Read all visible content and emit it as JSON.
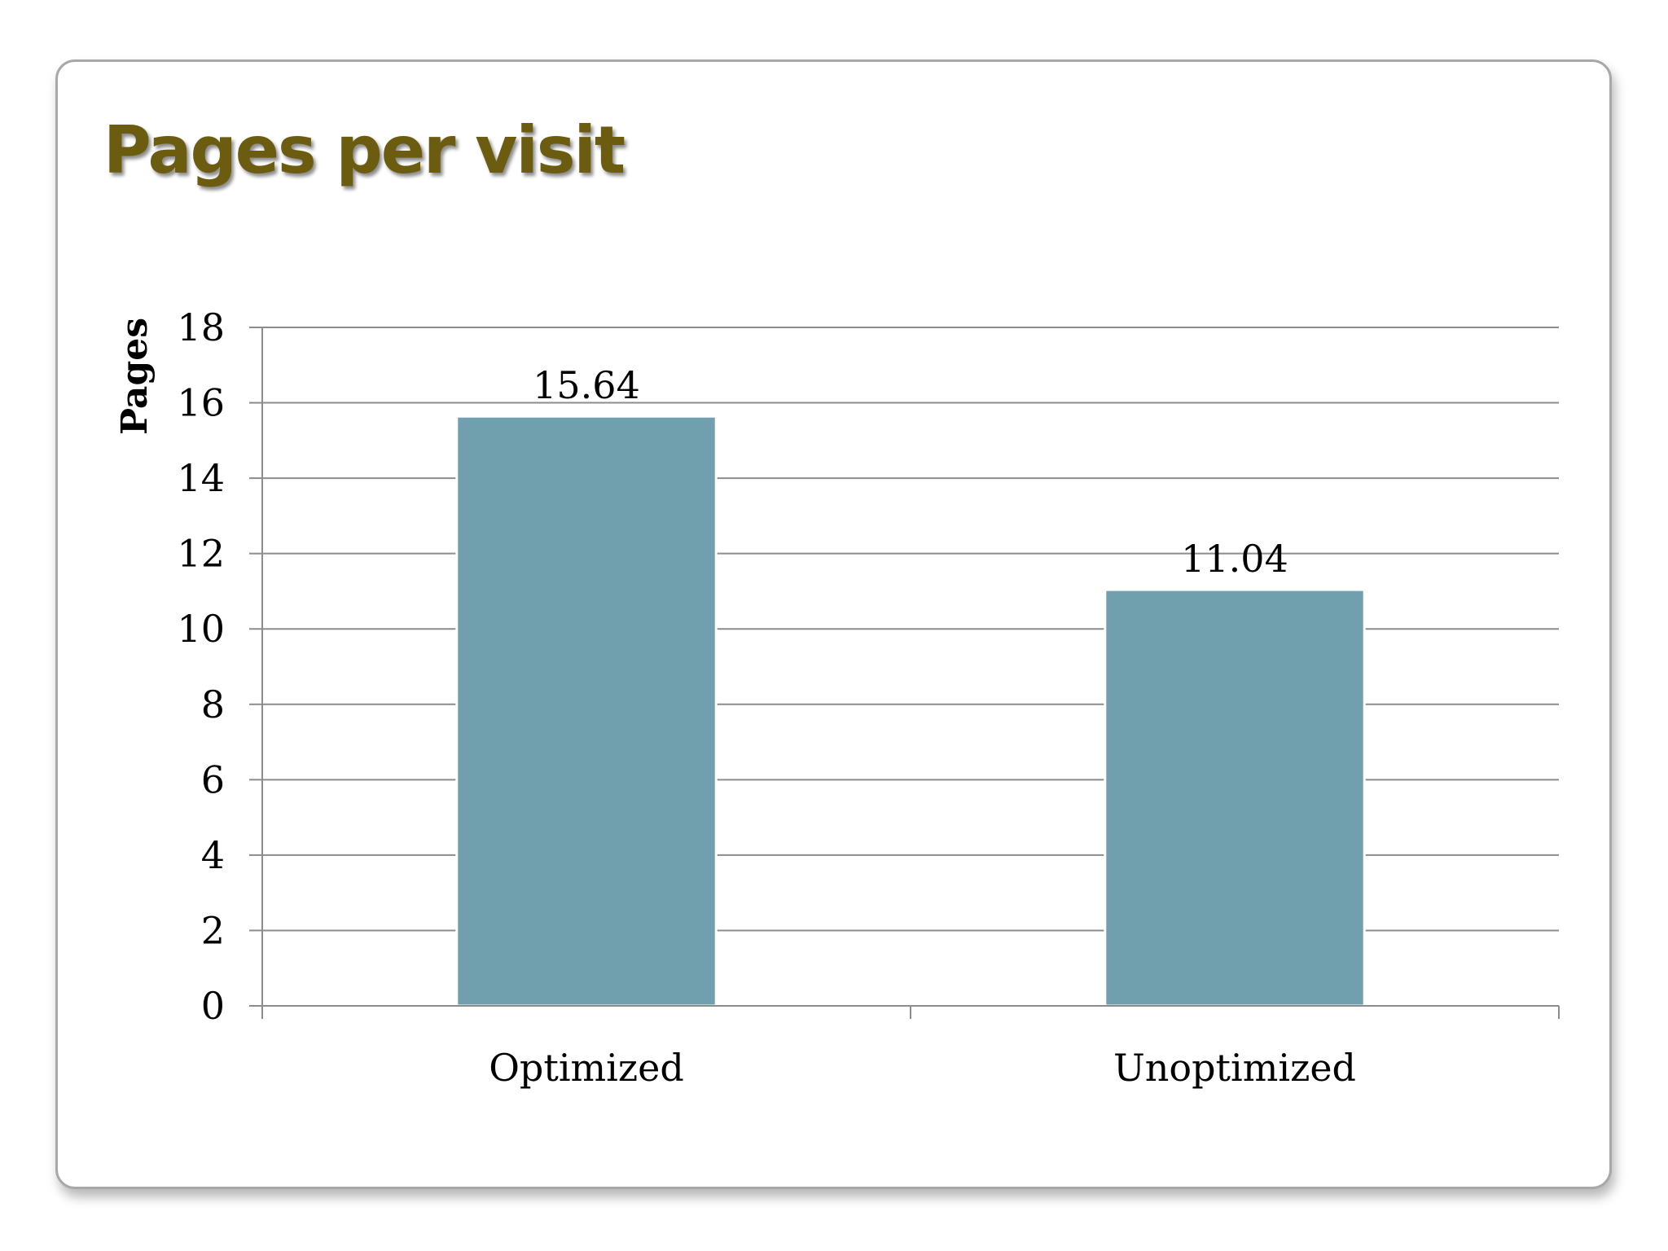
{
  "colors": {
    "title": "#6b5c10",
    "bar": "#70a0ae",
    "bar_edge": "#ffffff",
    "gridline": "#8c8c8c",
    "axis": "#8c8c8c"
  },
  "chart_data": {
    "type": "bar",
    "title": "Pages per visit",
    "xlabel": "",
    "ylabel": "Pages",
    "categories": [
      "Optimized",
      "Unoptimized"
    ],
    "values": [
      15.64,
      11.04
    ],
    "data_labels": [
      "15.64",
      "11.04"
    ],
    "ylim": [
      0,
      18
    ],
    "yticks": [
      0,
      2,
      4,
      6,
      8,
      10,
      12,
      14,
      16,
      18
    ],
    "grid": true,
    "legend": "none"
  }
}
